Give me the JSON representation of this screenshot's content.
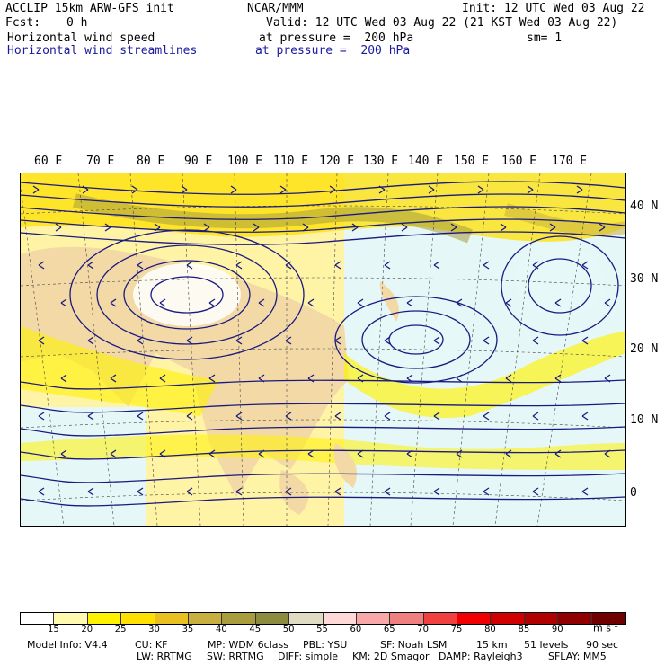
{
  "header": {
    "model": "ACCLIP 15km ARW-GFS init",
    "center": "NCAR/MMM",
    "init": "Init: 12 UTC Wed 03 Aug 22",
    "fcst_label": "Fcst:",
    "fcst_value": "0 h",
    "valid": "Valid: 12 UTC Wed 03 Aug 22 (21 KST Wed 03 Aug 22)",
    "field1": "Horizontal wind speed",
    "field1_level": "at pressure =  200 hPa",
    "smoothing": "sm= 1",
    "field2": "Horizontal wind streamlines",
    "field2_level": "at pressure =  200 hPa"
  },
  "map": {
    "lon_labels": [
      "60 E",
      "70 E",
      "80 E",
      "90 E",
      "100 E",
      "110 E",
      "120 E",
      "130 E",
      "140 E",
      "150 E",
      "160 E",
      "170 E"
    ],
    "lat_labels": [
      "40 N",
      "30 N",
      "20 N",
      "10 N",
      "0"
    ],
    "land_color": "#f2d9a6",
    "ocean_color": "#e6f7f7",
    "streamline_color": "#1a1a80",
    "coast_color": "#505050"
  },
  "colorbar": {
    "ticks": [
      "15",
      "20",
      "25",
      "30",
      "35",
      "40",
      "45",
      "50",
      "55",
      "60",
      "65",
      "70",
      "75",
      "80",
      "85",
      "90"
    ],
    "unit": "m s",
    "unit_exp": "-1",
    "colors": [
      "#ffffff",
      "#fffab0",
      "#fff200",
      "#ffe000",
      "#e8c020",
      "#c8b040",
      "#a89c3c",
      "#8c8c40",
      "#e0dcc4",
      "#ffd8d8",
      "#f8a8a8",
      "#f08080",
      "#f04040",
      "#f00000",
      "#d00000",
      "#b00000",
      "#900000",
      "#700000"
    ]
  },
  "footer": {
    "line1": [
      "Model Info: V4.4",
      "CU: KF",
      "MP: WDM 6class",
      "PBL: YSU",
      "SF: Noah LSM",
      "15 km",
      "51 levels",
      "90 sec"
    ],
    "line2": [
      "LW: RRTMG",
      "SW: RRTMG",
      "DIFF: simple",
      "KM: 2D Smagor",
      "DAMP: Rayleigh3",
      "SFLAY: MM5"
    ]
  }
}
